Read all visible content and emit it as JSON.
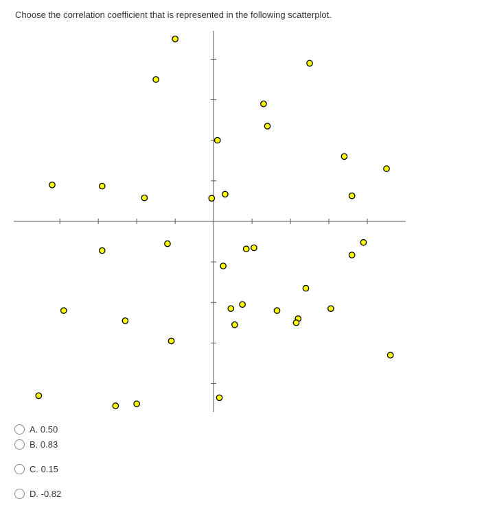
{
  "question": "Choose the correlation coefficient that is represented in the following scatterplot.",
  "options": [
    {
      "label": "A. 0.50"
    },
    {
      "label": "B. 0.83"
    },
    {
      "label": "C. 0.15"
    },
    {
      "label": "D. -0.82"
    }
  ],
  "colors": {
    "point_fill": "#ffff00",
    "point_stroke": "#000000",
    "axis": "#555555"
  },
  "chart_data": {
    "type": "scatter",
    "title": "",
    "xlabel": "",
    "ylabel": "",
    "xlim": [
      -5.2,
      5.0
    ],
    "ylim": [
      -4.7,
      4.7
    ],
    "x_ticks": [
      -4,
      -3,
      -2,
      -1,
      1,
      2,
      3,
      4
    ],
    "y_ticks": [
      -4,
      -3,
      -2,
      -1,
      1,
      2,
      3,
      4
    ],
    "grid": false,
    "points": [
      {
        "x": -1.0,
        "y": 4.5
      },
      {
        "x": -1.5,
        "y": 3.5
      },
      {
        "x": 2.5,
        "y": 3.9
      },
      {
        "x": 1.3,
        "y": 2.9
      },
      {
        "x": 1.4,
        "y": 2.35
      },
      {
        "x": 0.1,
        "y": 2.0
      },
      {
        "x": 3.4,
        "y": 1.6
      },
      {
        "x": 4.5,
        "y": 1.3
      },
      {
        "x": -4.2,
        "y": 0.9
      },
      {
        "x": -2.9,
        "y": 0.87
      },
      {
        "x": -1.8,
        "y": 0.58
      },
      {
        "x": -0.05,
        "y": 0.57
      },
      {
        "x": 0.3,
        "y": 0.67
      },
      {
        "x": 3.6,
        "y": 0.63
      },
      {
        "x": -2.9,
        "y": -0.72
      },
      {
        "x": -1.2,
        "y": -0.55
      },
      {
        "x": 0.85,
        "y": -0.68
      },
      {
        "x": 1.05,
        "y": -0.65
      },
      {
        "x": 3.9,
        "y": -0.52
      },
      {
        "x": 3.6,
        "y": -0.83
      },
      {
        "x": 0.25,
        "y": -1.1
      },
      {
        "x": 2.4,
        "y": -1.65
      },
      {
        "x": -3.9,
        "y": -2.2
      },
      {
        "x": 0.45,
        "y": -2.15
      },
      {
        "x": 0.75,
        "y": -2.05
      },
      {
        "x": 1.65,
        "y": -2.2
      },
      {
        "x": 2.2,
        "y": -2.4
      },
      {
        "x": 2.15,
        "y": -2.5
      },
      {
        "x": 3.05,
        "y": -2.15
      },
      {
        "x": -2.3,
        "y": -2.45
      },
      {
        "x": 0.55,
        "y": -2.55
      },
      {
        "x": -1.1,
        "y": -2.95
      },
      {
        "x": 4.6,
        "y": -3.3
      },
      {
        "x": -4.55,
        "y": -4.3
      },
      {
        "x": 0.15,
        "y": -4.35
      },
      {
        "x": -2.55,
        "y": -4.55
      },
      {
        "x": -2.0,
        "y": -4.5
      }
    ]
  }
}
